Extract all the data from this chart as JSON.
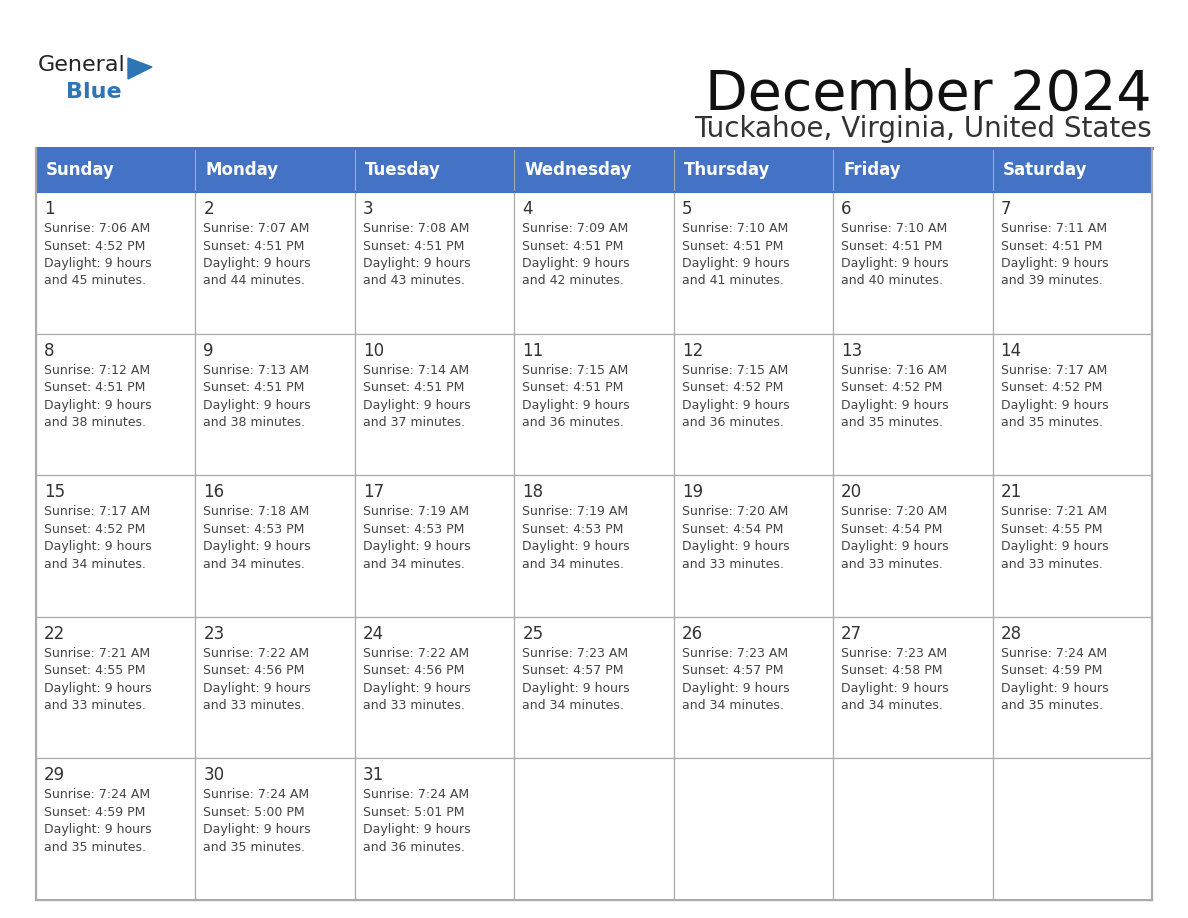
{
  "title": "December 2024",
  "subtitle": "Tuckahoe, Virginia, United States",
  "days_of_week": [
    "Sunday",
    "Monday",
    "Tuesday",
    "Wednesday",
    "Thursday",
    "Friday",
    "Saturday"
  ],
  "header_bg": "#4472C4",
  "header_text": "#FFFFFF",
  "cell_bg": "#FFFFFF",
  "border_color_header": "#4472C4",
  "border_color_cell": "#AAAAAA",
  "text_color": "#444444",
  "day_num_color": "#333333",
  "logo_general_color": "#222222",
  "logo_blue_color": "#2E75B6",
  "title_color": "#111111",
  "subtitle_color": "#333333",
  "calendar_data": [
    [
      {
        "day": 1,
        "sunrise": "7:06 AM",
        "sunset": "4:52 PM",
        "daylight_hrs": 9,
        "daylight_min": 45
      },
      {
        "day": 2,
        "sunrise": "7:07 AM",
        "sunset": "4:51 PM",
        "daylight_hrs": 9,
        "daylight_min": 44
      },
      {
        "day": 3,
        "sunrise": "7:08 AM",
        "sunset": "4:51 PM",
        "daylight_hrs": 9,
        "daylight_min": 43
      },
      {
        "day": 4,
        "sunrise": "7:09 AM",
        "sunset": "4:51 PM",
        "daylight_hrs": 9,
        "daylight_min": 42
      },
      {
        "day": 5,
        "sunrise": "7:10 AM",
        "sunset": "4:51 PM",
        "daylight_hrs": 9,
        "daylight_min": 41
      },
      {
        "day": 6,
        "sunrise": "7:10 AM",
        "sunset": "4:51 PM",
        "daylight_hrs": 9,
        "daylight_min": 40
      },
      {
        "day": 7,
        "sunrise": "7:11 AM",
        "sunset": "4:51 PM",
        "daylight_hrs": 9,
        "daylight_min": 39
      }
    ],
    [
      {
        "day": 8,
        "sunrise": "7:12 AM",
        "sunset": "4:51 PM",
        "daylight_hrs": 9,
        "daylight_min": 38
      },
      {
        "day": 9,
        "sunrise": "7:13 AM",
        "sunset": "4:51 PM",
        "daylight_hrs": 9,
        "daylight_min": 38
      },
      {
        "day": 10,
        "sunrise": "7:14 AM",
        "sunset": "4:51 PM",
        "daylight_hrs": 9,
        "daylight_min": 37
      },
      {
        "day": 11,
        "sunrise": "7:15 AM",
        "sunset": "4:51 PM",
        "daylight_hrs": 9,
        "daylight_min": 36
      },
      {
        "day": 12,
        "sunrise": "7:15 AM",
        "sunset": "4:52 PM",
        "daylight_hrs": 9,
        "daylight_min": 36
      },
      {
        "day": 13,
        "sunrise": "7:16 AM",
        "sunset": "4:52 PM",
        "daylight_hrs": 9,
        "daylight_min": 35
      },
      {
        "day": 14,
        "sunrise": "7:17 AM",
        "sunset": "4:52 PM",
        "daylight_hrs": 9,
        "daylight_min": 35
      }
    ],
    [
      {
        "day": 15,
        "sunrise": "7:17 AM",
        "sunset": "4:52 PM",
        "daylight_hrs": 9,
        "daylight_min": 34
      },
      {
        "day": 16,
        "sunrise": "7:18 AM",
        "sunset": "4:53 PM",
        "daylight_hrs": 9,
        "daylight_min": 34
      },
      {
        "day": 17,
        "sunrise": "7:19 AM",
        "sunset": "4:53 PM",
        "daylight_hrs": 9,
        "daylight_min": 34
      },
      {
        "day": 18,
        "sunrise": "7:19 AM",
        "sunset": "4:53 PM",
        "daylight_hrs": 9,
        "daylight_min": 34
      },
      {
        "day": 19,
        "sunrise": "7:20 AM",
        "sunset": "4:54 PM",
        "daylight_hrs": 9,
        "daylight_min": 33
      },
      {
        "day": 20,
        "sunrise": "7:20 AM",
        "sunset": "4:54 PM",
        "daylight_hrs": 9,
        "daylight_min": 33
      },
      {
        "day": 21,
        "sunrise": "7:21 AM",
        "sunset": "4:55 PM",
        "daylight_hrs": 9,
        "daylight_min": 33
      }
    ],
    [
      {
        "day": 22,
        "sunrise": "7:21 AM",
        "sunset": "4:55 PM",
        "daylight_hrs": 9,
        "daylight_min": 33
      },
      {
        "day": 23,
        "sunrise": "7:22 AM",
        "sunset": "4:56 PM",
        "daylight_hrs": 9,
        "daylight_min": 33
      },
      {
        "day": 24,
        "sunrise": "7:22 AM",
        "sunset": "4:56 PM",
        "daylight_hrs": 9,
        "daylight_min": 33
      },
      {
        "day": 25,
        "sunrise": "7:23 AM",
        "sunset": "4:57 PM",
        "daylight_hrs": 9,
        "daylight_min": 34
      },
      {
        "day": 26,
        "sunrise": "7:23 AM",
        "sunset": "4:57 PM",
        "daylight_hrs": 9,
        "daylight_min": 34
      },
      {
        "day": 27,
        "sunrise": "7:23 AM",
        "sunset": "4:58 PM",
        "daylight_hrs": 9,
        "daylight_min": 34
      },
      {
        "day": 28,
        "sunrise": "7:24 AM",
        "sunset": "4:59 PM",
        "daylight_hrs": 9,
        "daylight_min": 35
      }
    ],
    [
      {
        "day": 29,
        "sunrise": "7:24 AM",
        "sunset": "4:59 PM",
        "daylight_hrs": 9,
        "daylight_min": 35
      },
      {
        "day": 30,
        "sunrise": "7:24 AM",
        "sunset": "5:00 PM",
        "daylight_hrs": 9,
        "daylight_min": 35
      },
      {
        "day": 31,
        "sunrise": "7:24 AM",
        "sunset": "5:01 PM",
        "daylight_hrs": 9,
        "daylight_min": 36
      },
      null,
      null,
      null,
      null
    ]
  ],
  "figsize": [
    11.88,
    9.18
  ],
  "dpi": 100
}
